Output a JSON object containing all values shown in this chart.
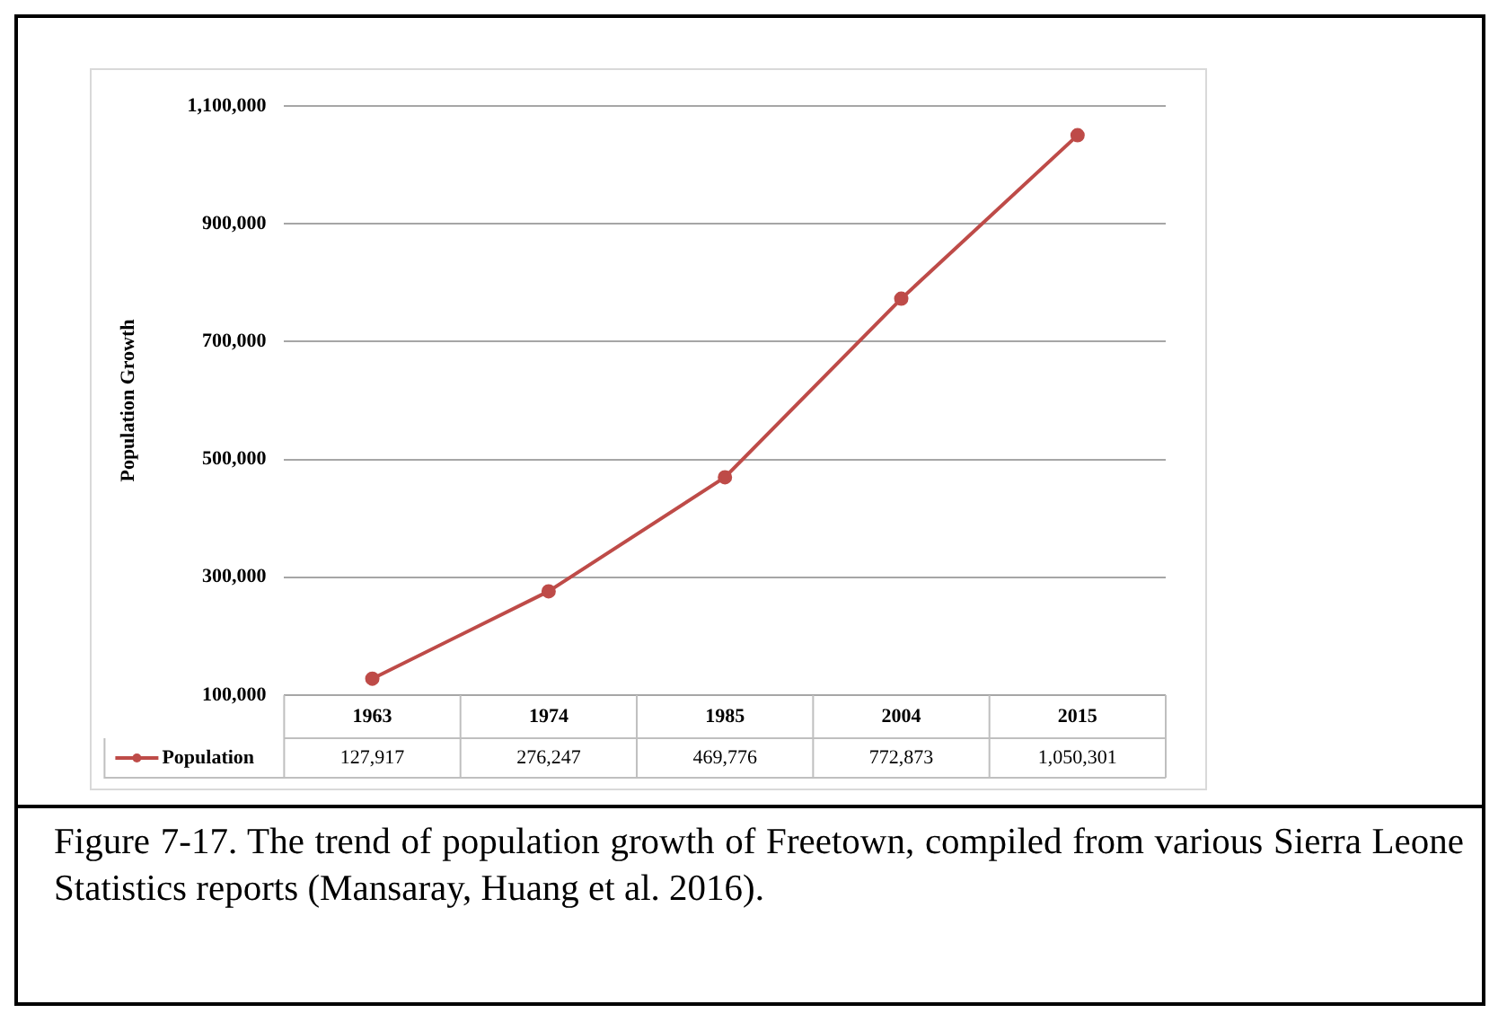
{
  "chart_data": {
    "type": "line",
    "ylabel": "Population Growth",
    "categories": [
      "1963",
      "1974",
      "1985",
      "2004",
      "2015"
    ],
    "series": [
      {
        "name": "Population",
        "color": "#be4b48",
        "values": [
          127917,
          276247,
          469776,
          772873,
          1050301
        ],
        "value_labels": [
          "127,917",
          "276,247",
          "469,776",
          "772,873",
          "1,050,301"
        ]
      }
    ],
    "ylim": [
      100000,
      1100000
    ],
    "yticks": [
      {
        "value": 100000,
        "label": "100,000"
      },
      {
        "value": 300000,
        "label": "300,000"
      },
      {
        "value": 500000,
        "label": "500,000"
      },
      {
        "value": 700000,
        "label": "700,000"
      },
      {
        "value": 900000,
        "label": "900,000"
      },
      {
        "value": 1100000,
        "label": "1,100,000"
      }
    ],
    "grid": "y",
    "legend": "bottom",
    "marker": "circle",
    "line_style": "solid",
    "annotations": [
      "Figure 7-17. The trend of population growth of Freetown, compiled from various Sierra Leone Statistics reports (Mansaray, Huang et al. 2016)."
    ]
  }
}
